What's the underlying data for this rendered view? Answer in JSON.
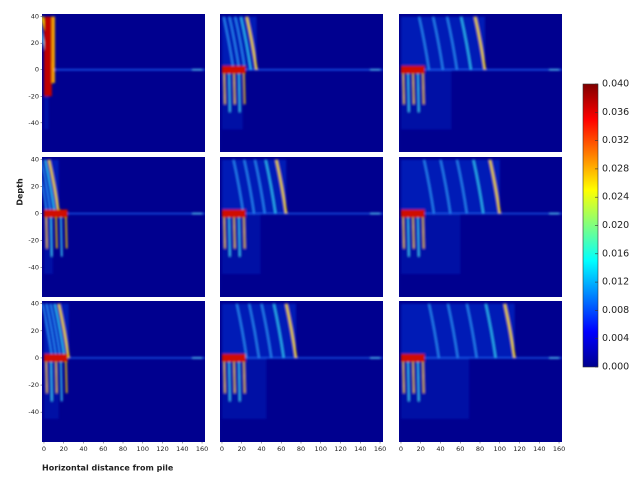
{
  "chart_data": {
    "type": "heatmap",
    "xlabel": "Horizontal distance from pile",
    "ylabel": "Depth",
    "xlim": [
      -2,
      163
    ],
    "xticks": [
      0,
      20,
      40,
      60,
      80,
      100,
      120,
      140,
      160
    ],
    "ylim": [
      -62,
      42
    ],
    "yticks": [
      -40,
      -20,
      0,
      20,
      40
    ],
    "colormap": "jet",
    "colorbar": {
      "lim": [
        0,
        0.04
      ],
      "ticks": [
        {
          "value": 0,
          "label": "0.000"
        },
        {
          "value": 0.004,
          "label": "0.004"
        },
        {
          "value": 0.008,
          "label": "0.008"
        },
        {
          "value": 0.012,
          "label": "0.012"
        },
        {
          "value": 0.016,
          "label": "0.016"
        },
        {
          "value": 0.02,
          "label": "0.020"
        },
        {
          "value": 0.024,
          "label": "0.024"
        },
        {
          "value": 0.028,
          "label": "0.028"
        },
        {
          "value": 0.032,
          "label": "0.032"
        },
        {
          "value": 0.036,
          "label": "0.036"
        },
        {
          "value": 0.04,
          "label": "0.040"
        }
      ]
    }
  }
}
